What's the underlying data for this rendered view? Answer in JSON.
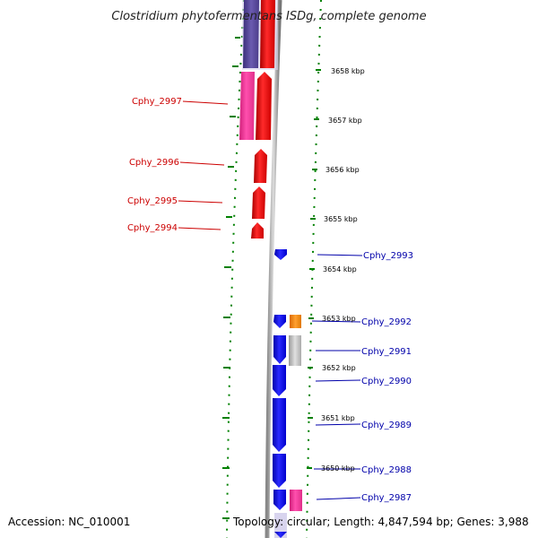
{
  "title": "Clostridium phytofermentans ISDg, complete genome",
  "accession": "Accession: NC_010001",
  "topology": "Topology: circular; Length: 4,847,594 bp; Genes: 3,988",
  "kbp_labels": [
    "3658 kbp",
    "3657 kbp",
    "3656 kbp",
    "3655 kbp",
    "3654 kbp",
    "3653 kbp",
    "3652 kbp",
    "3651 kbp",
    "3650 kbp"
  ],
  "genes_reverse": [
    "Cphy_2997",
    "Cphy_2996",
    "Cphy_2995",
    "Cphy_2994"
  ],
  "genes_forward": [
    "Cphy_2993",
    "Cphy_2992",
    "Cphy_2991",
    "Cphy_2990",
    "Cphy_2989",
    "Cphy_2988",
    "Cphy_2987"
  ],
  "colors": {
    "reverse_cds": "#ff0000",
    "forward_cds": "#0000ff",
    "rna_pink": "#ff3399",
    "purple": "#5a4a9a",
    "orange": "#ff8800",
    "gray": "#bbbbbb",
    "label_reverse": "#cc0000",
    "label_forward": "#0000aa",
    "tick_green": "#008000"
  }
}
